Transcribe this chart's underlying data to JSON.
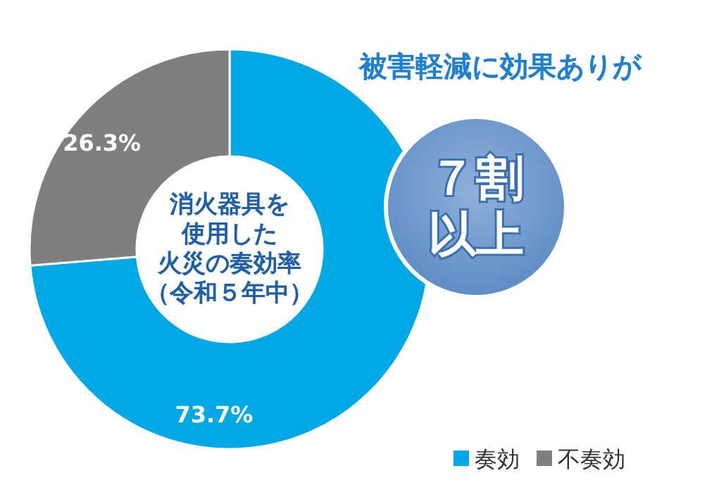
{
  "chart_data": {
    "type": "donut",
    "categories": [
      "奏効",
      "不奏効"
    ],
    "values": [
      73.7,
      26.3
    ],
    "colors": [
      "#00a9e6",
      "#7f7f7f"
    ],
    "value_labels": [
      "73.7%",
      "26.3%"
    ],
    "legend": "bottom right",
    "annotations": [
      "消火器具を",
      "使用した",
      "火災の奏効率",
      "（令和５年中）",
      "被害軽減に効果ありが",
      "７割",
      "以上"
    ]
  }
}
